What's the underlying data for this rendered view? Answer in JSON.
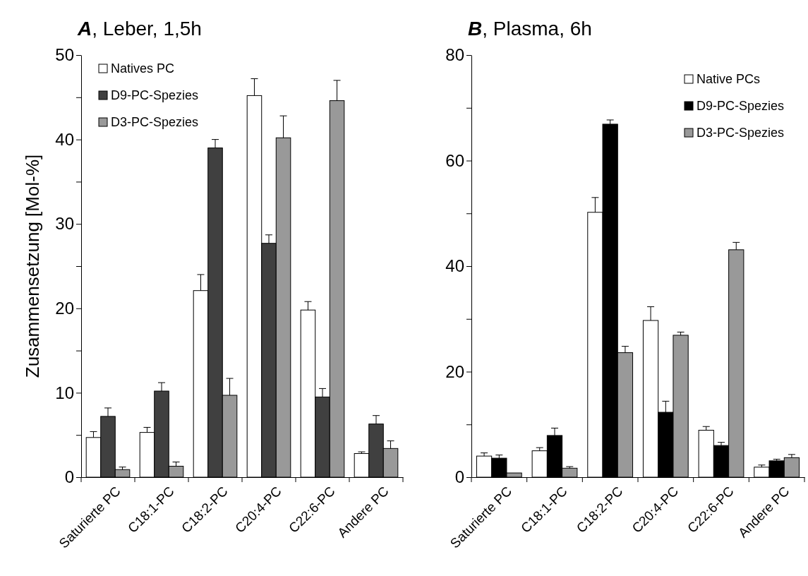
{
  "chart_data": [
    {
      "type": "bar",
      "title": "A, Leber, 1,5h",
      "ylabel": "Zusammensetzung [Mol-%]",
      "categories": [
        "Saturierte PC",
        "C18:1-PC",
        "C18:2-PC",
        "C20:4-PC",
        "C22:6-PC",
        "Andere PC"
      ],
      "series": [
        {
          "name": "Natives PC",
          "color": "#ffffff",
          "values": [
            4.7,
            5.3,
            22.1,
            45.2,
            19.8,
            2.8
          ],
          "errors": [
            [
              4.7,
              5.4
            ],
            [
              5.3,
              5.9
            ],
            [
              22.1,
              24.0
            ],
            [
              45.2,
              47.2
            ],
            [
              19.8,
              20.8
            ],
            [
              2.8,
              3.0
            ]
          ]
        },
        {
          "name": "D9-PC-Spezies",
          "color": "#404040",
          "values": [
            7.2,
            10.2,
            39.0,
            27.7,
            9.5,
            6.3
          ],
          "errors": [
            [
              7.2,
              8.2
            ],
            [
              10.2,
              11.2
            ],
            [
              39.0,
              40.0
            ],
            [
              27.7,
              28.7
            ],
            [
              9.5,
              10.5
            ],
            [
              6.3,
              7.3
            ]
          ]
        },
        {
          "name": "D3-PC-Spezies",
          "color": "#999999",
          "values": [
            0.9,
            1.3,
            9.7,
            40.2,
            44.6,
            3.4
          ],
          "errors": [
            [
              0.9,
              1.2
            ],
            [
              1.3,
              1.8
            ],
            [
              9.7,
              11.7
            ],
            [
              40.2,
              42.8
            ],
            [
              44.6,
              47.0
            ],
            [
              3.4,
              4.3
            ]
          ]
        }
      ],
      "ylim": [
        0,
        50
      ],
      "yticks": [
        0,
        {
          "value": 5,
          "label": null
        },
        10,
        {
          "value": 15,
          "label": null
        },
        20,
        {
          "value": 25,
          "label": null
        },
        30,
        {
          "value": 35,
          "label": null
        },
        40,
        {
          "value": 45,
          "label": null
        },
        50
      ],
      "legend": "top left",
      "grid": false
    },
    {
      "type": "bar",
      "title": "B, Plasma, 6h",
      "categories": [
        "Saturierte PC",
        "C18:1-PC",
        "C18:2-PC",
        "C20:4-PC",
        "C22:6-PC",
        "Andere PC"
      ],
      "series": [
        {
          "name": "Native PCs",
          "color": "#ffffff",
          "values": [
            4.0,
            5.0,
            50.2,
            29.7,
            8.9,
            1.9
          ],
          "errors": [
            [
              4.0,
              4.6
            ],
            [
              5.0,
              5.6
            ],
            [
              50.2,
              53.0
            ],
            [
              29.7,
              32.3
            ],
            [
              8.9,
              9.6
            ],
            [
              1.9,
              2.3
            ]
          ]
        },
        {
          "name": "D9-PC-Spezies",
          "color": "#000000",
          "values": [
            3.6,
            7.9,
            66.9,
            12.3,
            6.0,
            3.1
          ],
          "errors": [
            [
              3.6,
              4.2
            ],
            [
              7.9,
              9.3
            ],
            [
              66.9,
              67.7
            ],
            [
              12.3,
              14.4
            ],
            [
              6.0,
              6.6
            ],
            [
              3.1,
              3.4
            ]
          ]
        },
        {
          "name": "D3-PC-Spezies",
          "color": "#999999",
          "values": [
            0.8,
            1.7,
            23.6,
            26.9,
            43.1,
            3.7
          ],
          "errors": [
            null,
            [
              1.7,
              2.0
            ],
            [
              23.6,
              24.8
            ],
            [
              26.9,
              27.5
            ],
            [
              43.1,
              44.5
            ],
            [
              3.7,
              4.3
            ]
          ]
        }
      ],
      "ylim": [
        0,
        80
      ],
      "yticks": [
        0,
        {
          "value": 10,
          "label": null
        },
        20,
        {
          "value": 30,
          "label": null
        },
        40,
        {
          "value": 50,
          "label": null
        },
        60,
        {
          "value": 70,
          "label": null
        },
        80
      ],
      "legend": "top right",
      "grid": false
    }
  ]
}
